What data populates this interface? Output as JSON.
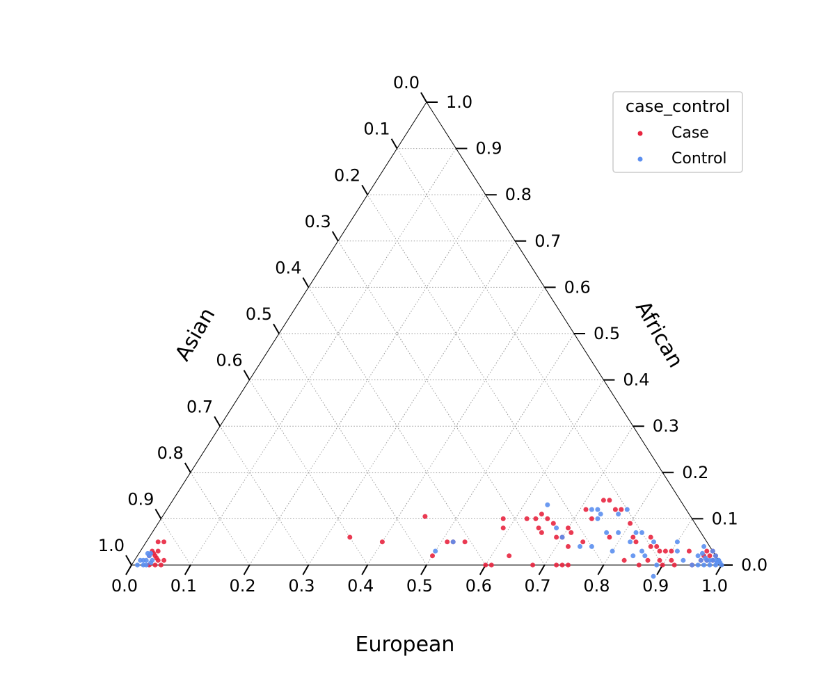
{
  "chart_data": {
    "type": "scatter",
    "subtype": "ternary",
    "axes": {
      "bottom": {
        "label": "European",
        "range": [
          0,
          1
        ]
      },
      "left": {
        "label": "Asian",
        "range": [
          0,
          1
        ]
      },
      "right": {
        "label": "African",
        "range": [
          0,
          1
        ]
      }
    },
    "ticks": [
      "0.0",
      "0.1",
      "0.2",
      "0.3",
      "0.4",
      "0.5",
      "0.6",
      "0.7",
      "0.8",
      "0.9",
      "1.0"
    ],
    "grid": true,
    "legend": {
      "title": "case_control",
      "placement": "top-right",
      "entries": [
        {
          "name": "Case",
          "color": "#e8253f"
        },
        {
          "name": "Control",
          "color": "#5b8ff0"
        }
      ]
    },
    "series": [
      {
        "name": "Case",
        "color": "#e8253f",
        "points": [
          [
            0.02,
            0.96,
            0.02
          ],
          [
            0.025,
            0.95,
            0.025
          ],
          [
            0.03,
            0.94,
            0.03
          ],
          [
            0.02,
            0.95,
            0.03
          ],
          [
            0.03,
            0.95,
            0.02
          ],
          [
            0.04,
            0.95,
            0.01
          ],
          [
            0.035,
            0.95,
            0.015
          ],
          [
            0.05,
            0.95,
            0.0
          ],
          [
            0.04,
            0.96,
            0.0
          ],
          [
            0.03,
            0.97,
            0.0
          ],
          [
            0.05,
            0.94,
            0.01
          ],
          [
            0.02,
            0.93,
            0.05
          ],
          [
            0.03,
            0.92,
            0.05
          ],
          [
            0.34,
            0.6,
            0.06
          ],
          [
            0.4,
            0.55,
            0.05
          ],
          [
            0.445,
            0.45,
            0.105
          ],
          [
            0.5,
            0.48,
            0.02
          ],
          [
            0.51,
            0.44,
            0.05
          ],
          [
            0.52,
            0.43,
            0.05
          ],
          [
            0.54,
            0.41,
            0.05
          ],
          [
            0.58,
            0.32,
            0.1
          ],
          [
            0.59,
            0.33,
            0.08
          ],
          [
            0.6,
            0.4,
            0.0
          ],
          [
            0.61,
            0.39,
            0.0
          ],
          [
            0.62,
            0.28,
            0.1
          ],
          [
            0.635,
            0.265,
            0.1
          ],
          [
            0.63,
            0.35,
            0.02
          ],
          [
            0.64,
            0.25,
            0.11
          ],
          [
            0.65,
            0.27,
            0.08
          ],
          [
            0.655,
            0.245,
            0.1
          ],
          [
            0.66,
            0.27,
            0.07
          ],
          [
            0.67,
            0.24,
            0.09
          ],
          [
            0.68,
            0.32,
            0.0
          ],
          [
            0.69,
            0.25,
            0.06
          ],
          [
            0.7,
            0.22,
            0.08
          ],
          [
            0.7,
            0.24,
            0.06
          ],
          [
            0.71,
            0.17,
            0.12
          ],
          [
            0.71,
            0.22,
            0.07
          ],
          [
            0.72,
            0.28,
            0.0
          ],
          [
            0.72,
            0.24,
            0.04
          ],
          [
            0.73,
            0.27,
            0.0
          ],
          [
            0.73,
            0.13,
            0.14
          ],
          [
            0.74,
            0.26,
            0.0
          ],
          [
            0.73,
            0.17,
            0.1
          ],
          [
            0.74,
            0.12,
            0.14
          ],
          [
            0.74,
            0.21,
            0.05
          ],
          [
            0.76,
            0.12,
            0.12
          ],
          [
            0.77,
            0.11,
            0.12
          ],
          [
            0.78,
            0.16,
            0.06
          ],
          [
            0.8,
            0.11,
            0.09
          ],
          [
            0.82,
            0.12,
            0.06
          ],
          [
            0.83,
            0.16,
            0.01
          ],
          [
            0.83,
            0.12,
            0.05
          ],
          [
            0.85,
            0.09,
            0.06
          ],
          [
            0.86,
            0.14,
            0.0
          ],
          [
            0.86,
            0.1,
            0.04
          ],
          [
            0.87,
            0.09,
            0.04
          ],
          [
            0.87,
            0.12,
            0.01
          ],
          [
            0.88,
            0.09,
            0.03
          ],
          [
            0.89,
            0.1,
            0.01
          ],
          [
            0.89,
            0.08,
            0.03
          ],
          [
            0.9,
            0.1,
            0.0
          ],
          [
            0.9,
            0.07,
            0.03
          ],
          [
            0.91,
            0.08,
            0.01
          ],
          [
            0.92,
            0.08,
            0.0
          ],
          [
            0.93,
            0.04,
            0.03
          ],
          [
            0.95,
            0.05,
            0.0
          ],
          [
            0.96,
            0.02,
            0.02
          ],
          [
            0.96,
            0.01,
            0.03
          ],
          [
            0.97,
            0.0,
            0.03
          ],
          [
            0.97,
            0.01,
            0.02
          ],
          [
            0.98,
            0.0,
            0.02
          ],
          [
            0.98,
            0.01,
            0.01
          ],
          [
            0.96,
            0.03,
            0.01
          ],
          [
            0.97,
            0.02,
            0.01
          ]
        ]
      },
      {
        "name": "Control",
        "color": "#5b8ff0",
        "points": [
          [
            0.01,
            0.98,
            0.01
          ],
          [
            0.02,
            0.97,
            0.01
          ],
          [
            0.015,
            0.975,
            0.01
          ],
          [
            0.02,
            0.96,
            0.02
          ],
          [
            0.01,
            0.99,
            0.0
          ],
          [
            0.02,
            0.98,
            0.0
          ],
          [
            0.025,
            0.975,
            0.0
          ],
          [
            0.03,
            0.965,
            0.005
          ],
          [
            0.03,
            0.96,
            0.01
          ],
          [
            0.015,
            0.96,
            0.025
          ],
          [
            0.02,
            0.955,
            0.025
          ],
          [
            0.5,
            0.47,
            0.03
          ],
          [
            0.52,
            0.43,
            0.05
          ],
          [
            0.64,
            0.23,
            0.13
          ],
          [
            0.68,
            0.24,
            0.08
          ],
          [
            0.7,
            0.24,
            0.06
          ],
          [
            0.72,
            0.16,
            0.12
          ],
          [
            0.73,
            0.15,
            0.12
          ],
          [
            0.74,
            0.15,
            0.11
          ],
          [
            0.74,
            0.16,
            0.1
          ],
          [
            0.74,
            0.22,
            0.04
          ],
          [
            0.77,
            0.16,
            0.07
          ],
          [
            0.77,
            0.12,
            0.11
          ],
          [
            0.76,
            0.2,
            0.04
          ],
          [
            0.78,
            0.1,
            0.12
          ],
          [
            0.79,
            0.14,
            0.07
          ],
          [
            0.8,
            0.17,
            0.03
          ],
          [
            0.82,
            0.11,
            0.07
          ],
          [
            0.82,
            0.13,
            0.05
          ],
          [
            0.83,
            0.1,
            0.07
          ],
          [
            0.84,
            0.14,
            0.02
          ],
          [
            0.85,
            0.12,
            0.03
          ],
          [
            0.86,
            0.09,
            0.05
          ],
          [
            0.86,
            0.12,
            0.02
          ],
          [
            0.88,
            0.14,
            0.0
          ],
          [
            0.89,
            0.11,
            0.0
          ],
          [
            0.9,
            0.05,
            0.05
          ],
          [
            0.91,
            0.06,
            0.03
          ],
          [
            0.93,
            0.06,
            0.01
          ],
          [
            0.95,
            0.01,
            0.04
          ],
          [
            0.95,
            0.03,
            0.02
          ],
          [
            0.95,
            0.05,
            0.0
          ],
          [
            0.96,
            0.04,
            0.0
          ],
          [
            0.97,
            0.02,
            0.01
          ],
          [
            0.97,
            0.0,
            0.03
          ],
          [
            0.98,
            0.01,
            0.01
          ],
          [
            0.98,
            0.02,
            0.0
          ],
          [
            0.99,
            0.01,
            0.0
          ],
          [
            0.99,
            0.0,
            0.01
          ],
          [
            1.0,
            0.0,
            0.0
          ],
          [
            0.985,
            0.005,
            0.01
          ],
          [
            0.975,
            0.015,
            0.01
          ],
          [
            0.99,
            0.005,
            0.005
          ],
          [
            0.995,
            0.0,
            0.005
          ],
          [
            0.97,
            0.03,
            0.0
          ],
          [
            0.96,
            0.03,
            0.01
          ],
          [
            0.98,
            0.0,
            0.02
          ],
          [
            0.965,
            0.02,
            0.015
          ],
          [
            0.955,
            0.02,
            0.025
          ],
          [
            0.99,
            0.0,
            0.01
          ]
        ]
      }
    ]
  }
}
